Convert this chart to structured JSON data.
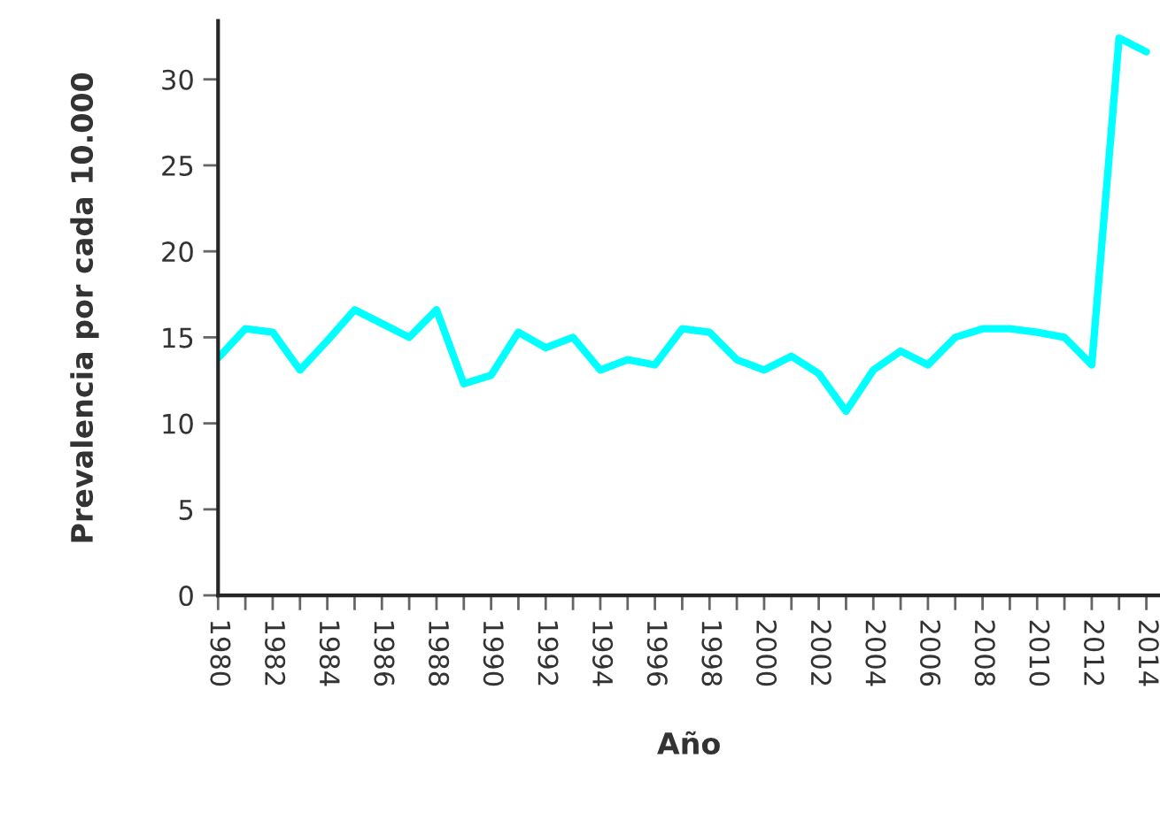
{
  "chart_data": {
    "type": "line",
    "xlabel": "Año",
    "ylabel": "Prevalencia por cada 10.000",
    "x": [
      1980,
      1981,
      1982,
      1983,
      1984,
      1985,
      1986,
      1987,
      1988,
      1989,
      1990,
      1991,
      1992,
      1993,
      1994,
      1995,
      1996,
      1997,
      1998,
      1999,
      2000,
      2001,
      2002,
      2003,
      2004,
      2005,
      2006,
      2007,
      2008,
      2009,
      2010,
      2011,
      2012,
      2013,
      2014
    ],
    "series": [
      {
        "color": "#00ffff",
        "values": [
          13.8,
          15.5,
          15.3,
          13.1,
          14.8,
          16.6,
          15.8,
          15.0,
          16.6,
          12.3,
          12.8,
          15.3,
          14.4,
          15.0,
          13.1,
          13.7,
          13.4,
          15.5,
          15.3,
          13.7,
          13.1,
          13.9,
          12.9,
          10.7,
          13.1,
          14.2,
          13.4,
          15.0,
          15.5,
          15.5,
          15.3,
          15.0,
          13.4,
          32.4,
          31.6
        ]
      }
    ],
    "xlim": [
      1980,
      2014.5
    ],
    "ylim": [
      0,
      33.4
    ],
    "xticks": [
      1980,
      {
        "value": 1981,
        "label": null
      },
      1982,
      {
        "value": 1983,
        "label": null
      },
      1984,
      {
        "value": 1985,
        "label": null
      },
      1986,
      {
        "value": 1987,
        "label": null
      },
      1988,
      {
        "value": 1989,
        "label": null
      },
      1990,
      {
        "value": 1991,
        "label": null
      },
      1992,
      {
        "value": 1993,
        "label": null
      },
      1994,
      {
        "value": 1995,
        "label": null
      },
      1996,
      {
        "value": 1997,
        "label": null
      },
      1998,
      {
        "value": 1999,
        "label": null
      },
      2000,
      {
        "value": 2001,
        "label": null
      },
      2002,
      {
        "value": 2003,
        "label": null
      },
      2004,
      {
        "value": 2005,
        "label": null
      },
      2006,
      {
        "value": 2007,
        "label": null
      },
      2008,
      {
        "value": 2009,
        "label": null
      },
      2010,
      {
        "value": 2011,
        "label": null
      },
      2012,
      {
        "value": 2013,
        "label": null
      },
      2014
    ],
    "yticks": [
      0,
      5,
      10,
      15,
      20,
      25,
      30
    ],
    "grid": false,
    "legend": false,
    "marker": "none",
    "line_style": "solid"
  }
}
